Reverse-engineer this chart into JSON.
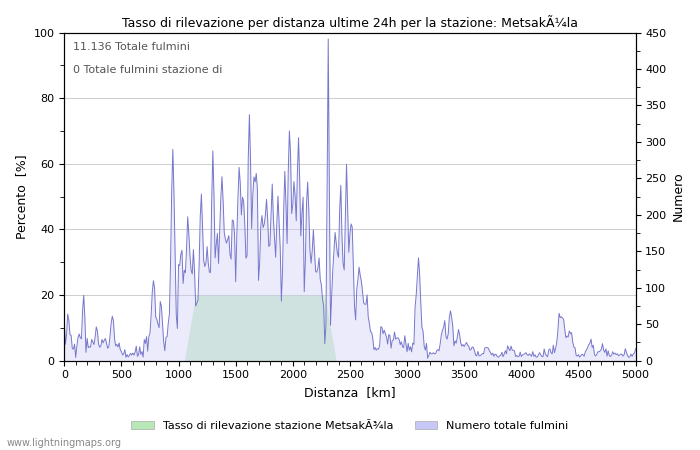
{
  "title": "Tasso di rilevazione per distanza ultime 24h per la stazione: MetsakÃ¼la",
  "xlabel": "Distanza  [km]",
  "ylabel_left": "Percento  [%]",
  "ylabel_right": "Numero",
  "annotation_line1": "11.136 Totale fulmini",
  "annotation_line2": "0 Totale fulmini stazione di",
  "legend_label1": "Tasso di rilevazione stazione MetsakÃ¾la",
  "legend_label2": "Numero totale fulmini",
  "watermark": "www.lightningmaps.org",
  "xlim": [
    0,
    5000
  ],
  "ylim_left": [
    0,
    100
  ],
  "ylim_right": [
    0,
    450
  ],
  "right_ticks": [
    0,
    50,
    100,
    150,
    200,
    250,
    300,
    350,
    400,
    450
  ],
  "left_ticks": [
    0,
    20,
    40,
    60,
    80,
    100
  ],
  "xticks": [
    0,
    500,
    1000,
    1500,
    2000,
    2500,
    3000,
    3500,
    4000,
    4500,
    5000
  ],
  "fill_green_color": "#b8e8b8",
  "fill_blue_color": "#c8c8f8",
  "line_blue_color": "#7777cc",
  "line_green_color": "#88cc88",
  "background_color": "#FFFFFF",
  "grid_color": "#bbbbbb"
}
